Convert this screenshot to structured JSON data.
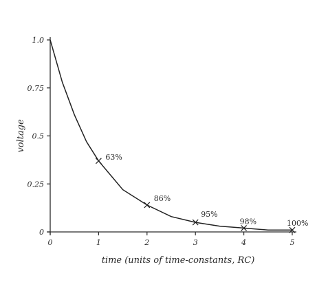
{
  "chart_data": {
    "type": "line",
    "title": "",
    "xlabel": "time (units of time-constants, RC)",
    "ylabel": "voltage",
    "xlim": [
      0,
      5
    ],
    "ylim": [
      0,
      1.0
    ],
    "x_ticks": [
      {
        "value": 0,
        "label": "0"
      },
      {
        "value": 1,
        "label": "1"
      },
      {
        "value": 2,
        "label": "2"
      },
      {
        "value": 3,
        "label": "3"
      },
      {
        "value": 4,
        "label": "4"
      },
      {
        "value": 5,
        "label": "5"
      }
    ],
    "y_ticks": [
      {
        "value": 0,
        "label": "0"
      },
      {
        "value": 0.25,
        "label": "0.25"
      },
      {
        "value": 0.5,
        "label": "0.5"
      },
      {
        "value": 0.75,
        "label": "0.75"
      },
      {
        "value": 1.0,
        "label": "1.0"
      }
    ],
    "grid": false,
    "series": [
      {
        "function": "exp(-t)",
        "x": [
          0,
          0.25,
          0.5,
          0.75,
          1,
          1.5,
          2,
          2.5,
          3,
          3.5,
          4,
          4.5,
          5
        ],
        "y": [
          1.0,
          0.78,
          0.61,
          0.47,
          0.37,
          0.22,
          0.14,
          0.08,
          0.05,
          0.03,
          0.02,
          0.01,
          0.01
        ]
      }
    ],
    "annotations": [
      {
        "x": 1,
        "y": 0.37,
        "label": "63%"
      },
      {
        "x": 2,
        "y": 0.14,
        "label": "86%"
      },
      {
        "x": 3,
        "y": 0.05,
        "label": "95%"
      },
      {
        "x": 4,
        "y": 0.02,
        "label": "98%"
      },
      {
        "x": 5,
        "y": 0.01,
        "label": "100%"
      }
    ]
  }
}
